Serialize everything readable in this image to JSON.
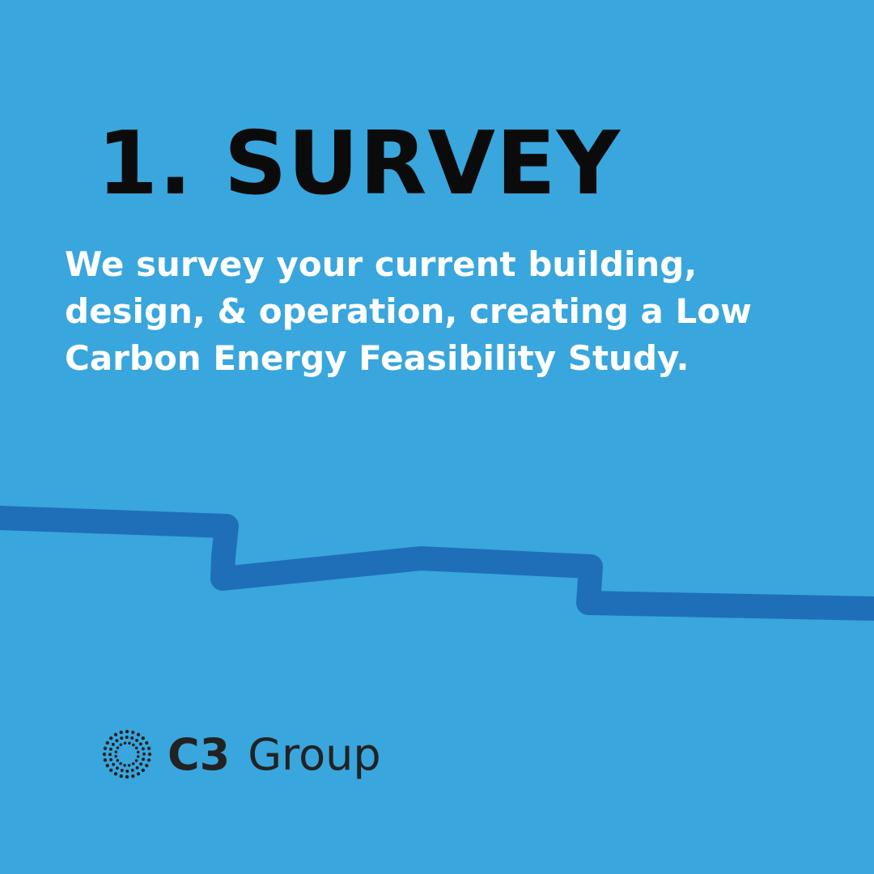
{
  "heading": "1. SURVEY",
  "body": {
    "lines": [
      "We survey your current building,",
      "design, & operation, creating a Low",
      "Carbon Energy Feasibility Study."
    ]
  },
  "logo": {
    "brand": "C3",
    "name": "Group"
  }
}
